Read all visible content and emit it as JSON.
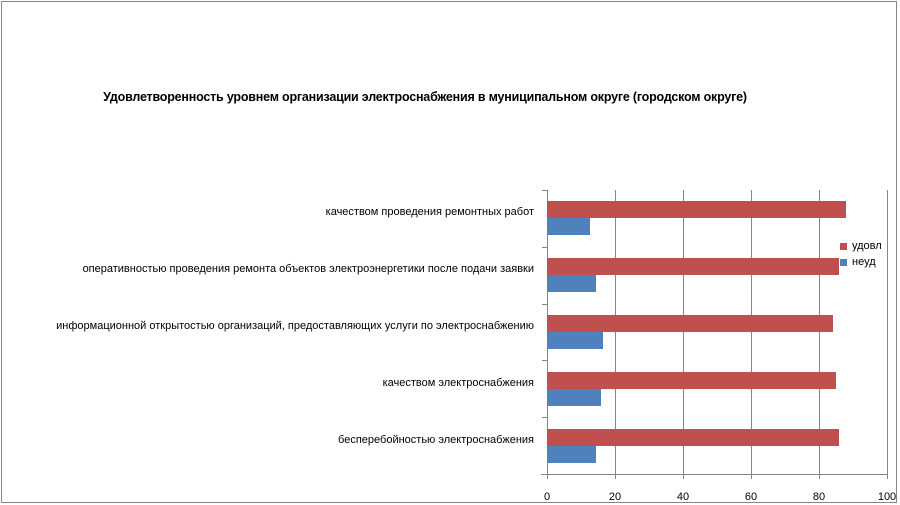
{
  "chart_data": {
    "type": "bar",
    "orientation": "horizontal",
    "title": "Удовлетворенность уровнем организации электроснабжения в муниципальном округе (городском округе)",
    "xlabel": "",
    "ylabel": "",
    "xlim": [
      0,
      100
    ],
    "x_ticks": [
      "0",
      "20",
      "40",
      "60",
      "80",
      "100"
    ],
    "grid": true,
    "legend_position": "right",
    "categories": [
      "качеством проведения ремонтных работ",
      "оперативностью проведения ремонта объектов электроэнергетики после подачи заявки",
      "информационной открытостью организаций, предоставляющих услуги по электроснабжению",
      "качеством электроснабжения",
      "бесперебойностью электроснабжения"
    ],
    "series": [
      {
        "name": "удовл",
        "color": "#C0504D",
        "values": [
          88,
          86,
          84,
          85,
          86
        ]
      },
      {
        "name": "неуд",
        "color": "#4F81BD",
        "values": [
          12.5,
          14.5,
          16.5,
          16,
          14.5
        ]
      }
    ]
  },
  "legend": {
    "items": [
      {
        "label": "удовл",
        "color": "#C0504D"
      },
      {
        "label": "неуд",
        "color": "#4F81BD"
      }
    ]
  }
}
